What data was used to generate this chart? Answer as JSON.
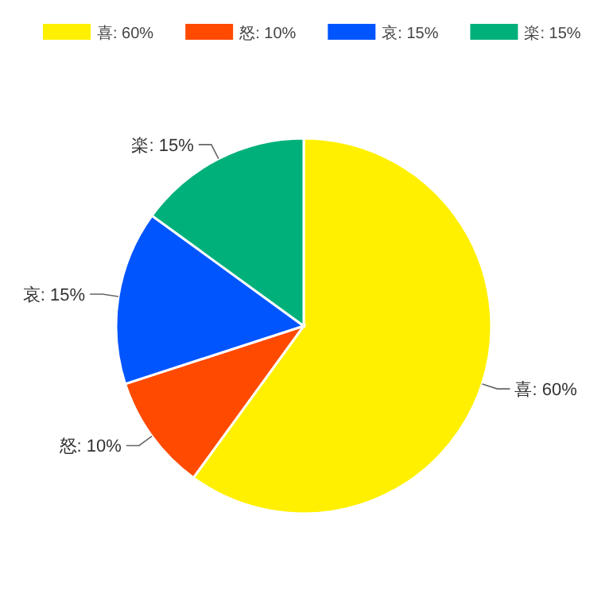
{
  "chart_data": {
    "type": "pie",
    "categories": [
      "喜: 60%",
      "怒: 10%",
      "哀: 15%",
      "楽: 15%"
    ],
    "values": [
      60,
      10,
      15,
      15
    ],
    "colors": [
      "#fff000",
      "#ff4a00",
      "#0055ff",
      "#00b07a"
    ],
    "legend": "top"
  }
}
